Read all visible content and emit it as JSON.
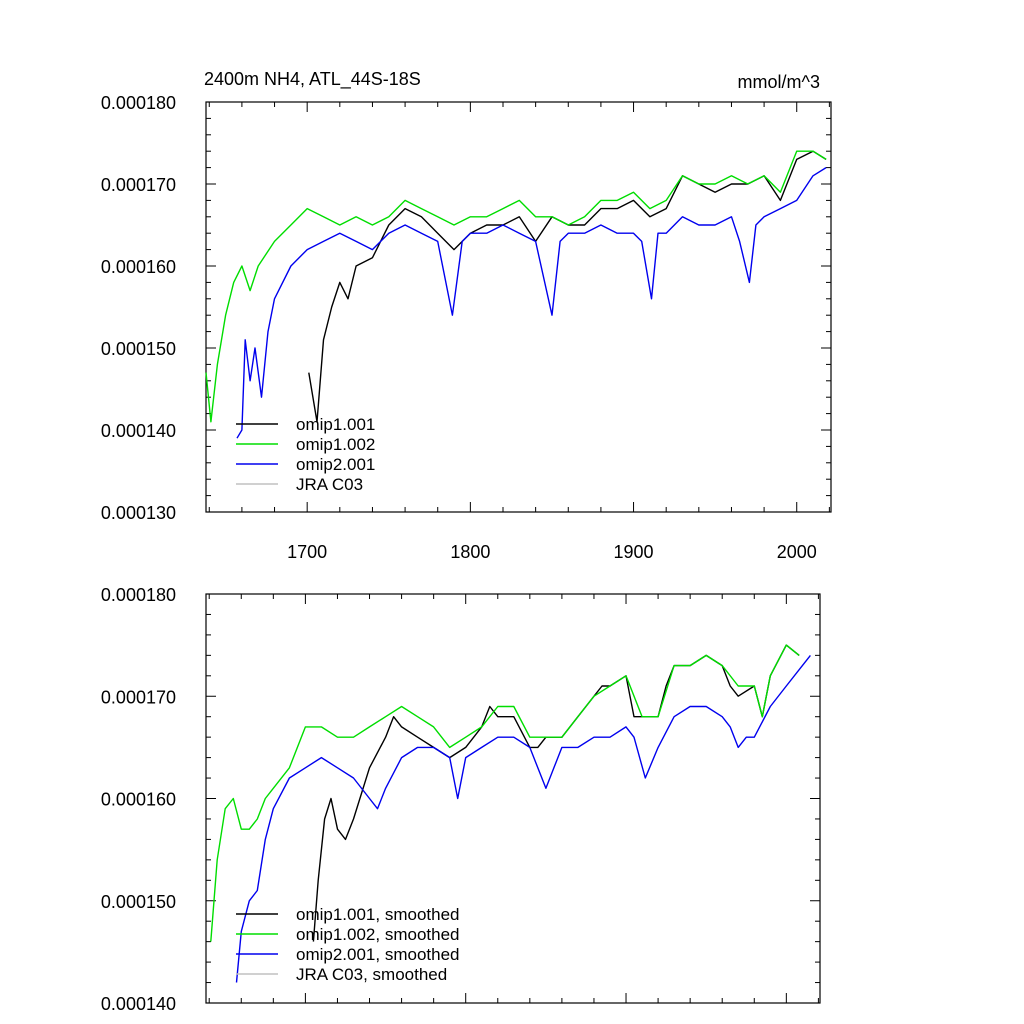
{
  "figure": {
    "title_left": "2400m NH4, ATL_44S-18S",
    "title_right": "mmol/m^3"
  },
  "chart_data": [
    {
      "type": "line",
      "panel": "top",
      "x_range": [
        1638,
        2021
      ],
      "ylim": [
        0.00013,
        0.00018
      ],
      "x_ticks": [
        1700,
        1800,
        1900,
        2000
      ],
      "x_tick_labels": [
        "1700",
        "1800",
        "1900",
        "2000"
      ],
      "y_ticks": [
        0.00013,
        0.00014,
        0.00015,
        0.00016,
        0.00017,
        0.00018
      ],
      "y_tick_labels": [
        "0.000130",
        "0.000140",
        "0.000150",
        "0.000160",
        "0.000170",
        "0.000180"
      ],
      "legend_position": "bottom-left",
      "series": [
        {
          "name": "omip1.001",
          "color": "#000000",
          "x": [
            1701,
            1706,
            1710,
            1715,
            1720,
            1725,
            1730,
            1740,
            1750,
            1760,
            1770,
            1780,
            1790,
            1800,
            1810,
            1820,
            1830,
            1840,
            1850,
            1860,
            1870,
            1880,
            1890,
            1900,
            1910,
            1920,
            1930,
            1940,
            1950,
            1960,
            1970,
            1980,
            1990,
            2000,
            2010,
            2018
          ],
          "y": [
            0.000147,
            0.000141,
            0.000151,
            0.000155,
            0.000158,
            0.000156,
            0.00016,
            0.000161,
            0.000165,
            0.000167,
            0.000166,
            0.000164,
            0.000162,
            0.000164,
            0.000165,
            0.000165,
            0.000166,
            0.000163,
            0.000166,
            0.000165,
            0.000165,
            0.000167,
            0.000167,
            0.000168,
            0.000166,
            0.000167,
            0.000171,
            0.00017,
            0.000169,
            0.00017,
            0.00017,
            0.000171,
            0.000168,
            0.000173,
            0.000174,
            0.000173
          ]
        },
        {
          "name": "omip1.002",
          "color": "#00dd00",
          "x": [
            1638,
            1641,
            1645,
            1650,
            1655,
            1660,
            1665,
            1670,
            1680,
            1690,
            1700,
            1710,
            1720,
            1730,
            1740,
            1750,
            1760,
            1770,
            1780,
            1790,
            1800,
            1810,
            1820,
            1830,
            1840,
            1850,
            1860,
            1870,
            1880,
            1890,
            1900,
            1910,
            1920,
            1930,
            1940,
            1950,
            1960,
            1970,
            1980,
            1990,
            2000,
            2010,
            2018
          ],
          "y": [
            0.000147,
            0.000141,
            0.000148,
            0.000154,
            0.000158,
            0.00016,
            0.000157,
            0.00016,
            0.000163,
            0.000165,
            0.000167,
            0.000166,
            0.000165,
            0.000166,
            0.000165,
            0.000166,
            0.000168,
            0.000167,
            0.000166,
            0.000165,
            0.000166,
            0.000166,
            0.000167,
            0.000168,
            0.000166,
            0.000166,
            0.000165,
            0.000166,
            0.000168,
            0.000168,
            0.000169,
            0.000167,
            0.000168,
            0.000171,
            0.00017,
            0.00017,
            0.000171,
            0.00017,
            0.000171,
            0.000169,
            0.000174,
            0.000174,
            0.000173
          ]
        },
        {
          "name": "omip2.001",
          "color": "#0000ee",
          "x": [
            1657,
            1660,
            1662,
            1665,
            1668,
            1672,
            1676,
            1680,
            1690,
            1700,
            1710,
            1720,
            1730,
            1740,
            1750,
            1760,
            1770,
            1780,
            1789,
            1795,
            1800,
            1810,
            1820,
            1830,
            1840,
            1850,
            1855,
            1860,
            1870,
            1880,
            1890,
            1900,
            1905,
            1911,
            1915,
            1920,
            1930,
            1940,
            1950,
            1960,
            1965,
            1971,
            1975,
            1980,
            1990,
            2000,
            2010,
            2018
          ],
          "y": [
            0.000139,
            0.00014,
            0.000151,
            0.000146,
            0.00015,
            0.000144,
            0.000152,
            0.000156,
            0.00016,
            0.000162,
            0.000163,
            0.000164,
            0.000163,
            0.000162,
            0.000164,
            0.000165,
            0.000164,
            0.000163,
            0.000154,
            0.000163,
            0.000164,
            0.000164,
            0.000165,
            0.000164,
            0.000163,
            0.000154,
            0.000163,
            0.000164,
            0.000164,
            0.000165,
            0.000164,
            0.000164,
            0.000163,
            0.000156,
            0.000164,
            0.000164,
            0.000166,
            0.000165,
            0.000165,
            0.000166,
            0.000163,
            0.000158,
            0.000165,
            0.000166,
            0.000167,
            0.000168,
            0.000171,
            0.000172
          ]
        },
        {
          "name": "JRA C03",
          "color": "#c0c0c0",
          "x": [],
          "y": []
        }
      ]
    },
    {
      "type": "line",
      "panel": "bottom",
      "x_range": [
        1638,
        2021
      ],
      "ylim": [
        0.00014,
        0.00018
      ],
      "x_ticks": [
        1700,
        1800,
        1900,
        2000
      ],
      "y_ticks": [
        0.00014,
        0.00015,
        0.00016,
        0.00017,
        0.00018
      ],
      "y_tick_labels": [
        "0.000140",
        "0.000150",
        "0.000160",
        "0.000170",
        "0.000180"
      ],
      "legend_position": "bottom-left",
      "series": [
        {
          "name": "omip1.001, smoothed",
          "color": "#000000",
          "x": [
            1705,
            1708,
            1712,
            1716,
            1720,
            1725,
            1730,
            1740,
            1750,
            1755,
            1760,
            1770,
            1780,
            1790,
            1800,
            1810,
            1815,
            1820,
            1830,
            1840,
            1845,
            1850,
            1860,
            1870,
            1880,
            1885,
            1890,
            1900,
            1905,
            1910,
            1920,
            1925,
            1930,
            1940,
            1950,
            1960,
            1965,
            1970,
            1980,
            1985,
            1990,
            2000,
            2008
          ],
          "y": [
            0.000146,
            0.000152,
            0.000158,
            0.00016,
            0.000157,
            0.000156,
            0.000158,
            0.000163,
            0.000166,
            0.000168,
            0.000167,
            0.000166,
            0.000165,
            0.000164,
            0.000165,
            0.000167,
            0.000169,
            0.000168,
            0.000168,
            0.000165,
            0.000165,
            0.000166,
            0.000166,
            0.000168,
            0.00017,
            0.000171,
            0.000171,
            0.000172,
            0.000168,
            0.000168,
            0.000168,
            0.000171,
            0.000173,
            0.000173,
            0.000174,
            0.000173,
            0.000171,
            0.00017,
            0.000171,
            0.000168,
            0.000172,
            0.000175,
            0.000174
          ]
        },
        {
          "name": "omip1.002, smoothed",
          "color": "#00dd00",
          "x": [
            1641,
            1645,
            1650,
            1655,
            1660,
            1665,
            1670,
            1675,
            1680,
            1690,
            1700,
            1710,
            1720,
            1730,
            1740,
            1750,
            1760,
            1770,
            1780,
            1790,
            1800,
            1810,
            1820,
            1830,
            1840,
            1850,
            1860,
            1870,
            1880,
            1890,
            1900,
            1910,
            1920,
            1930,
            1940,
            1950,
            1960,
            1970,
            1980,
            1985,
            1990,
            2000,
            2008
          ],
          "y": [
            0.000146,
            0.000154,
            0.000159,
            0.00016,
            0.000157,
            0.000157,
            0.000158,
            0.00016,
            0.000161,
            0.000163,
            0.000167,
            0.000167,
            0.000166,
            0.000166,
            0.000167,
            0.000168,
            0.000169,
            0.000168,
            0.000167,
            0.000165,
            0.000166,
            0.000167,
            0.000169,
            0.000169,
            0.000166,
            0.000166,
            0.000166,
            0.000168,
            0.00017,
            0.000171,
            0.000172,
            0.000168,
            0.000168,
            0.000173,
            0.000173,
            0.000174,
            0.000173,
            0.000171,
            0.000171,
            0.000168,
            0.000172,
            0.000175,
            0.000174
          ]
        },
        {
          "name": "omip2.001, smoothed",
          "color": "#0000ee",
          "x": [
            1657,
            1660,
            1665,
            1670,
            1675,
            1680,
            1690,
            1700,
            1710,
            1720,
            1730,
            1740,
            1745,
            1750,
            1760,
            1770,
            1780,
            1790,
            1795,
            1800,
            1810,
            1820,
            1830,
            1840,
            1850,
            1855,
            1860,
            1870,
            1880,
            1890,
            1900,
            1905,
            1912,
            1920,
            1930,
            1940,
            1950,
            1960,
            1965,
            1970,
            1975,
            1980,
            1990,
            2000,
            2010,
            2015
          ],
          "y": [
            0.000142,
            0.000147,
            0.00015,
            0.000151,
            0.000156,
            0.000159,
            0.000162,
            0.000163,
            0.000164,
            0.000163,
            0.000162,
            0.00016,
            0.000159,
            0.000161,
            0.000164,
            0.000165,
            0.000165,
            0.000164,
            0.00016,
            0.000164,
            0.000165,
            0.000166,
            0.000166,
            0.000165,
            0.000161,
            0.000163,
            0.000165,
            0.000165,
            0.000166,
            0.000166,
            0.000167,
            0.000166,
            0.000162,
            0.000165,
            0.000168,
            0.000169,
            0.000169,
            0.000168,
            0.000167,
            0.000165,
            0.000166,
            0.000166,
            0.000169,
            0.000171,
            0.000173,
            0.000174
          ]
        },
        {
          "name": "JRA C03, smoothed",
          "color": "#c0c0c0",
          "x": [],
          "y": []
        }
      ]
    }
  ]
}
